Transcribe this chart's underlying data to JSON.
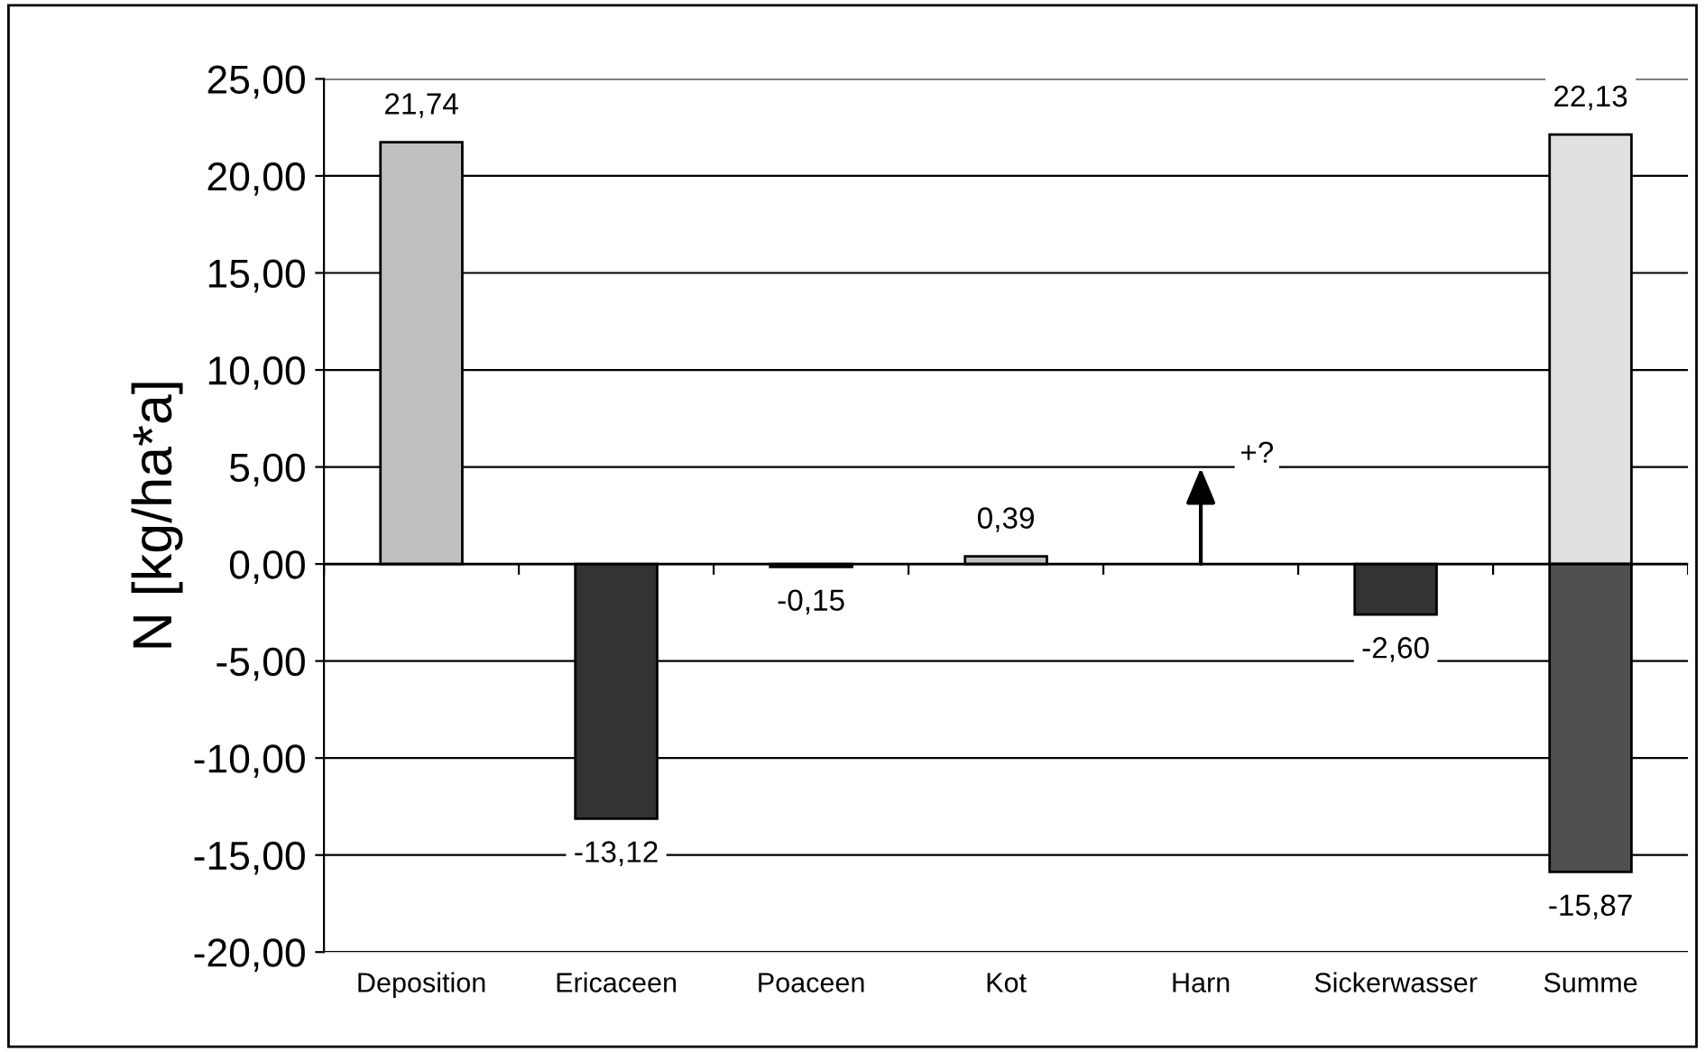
{
  "chart_data": {
    "type": "bar",
    "ylabel": "N [kg/ha*a]",
    "categories": [
      "Deposition",
      "Ericaceen",
      "Poaceen",
      "Kot",
      "Harn",
      "Sickerwasser",
      "Summe"
    ],
    "series": [
      {
        "colors": [
          "#c0c0c0",
          "#333333",
          "#333333",
          "#c0c0c0",
          null,
          "#333333",
          "#e0e0e0"
        ],
        "values": [
          21.74,
          -13.12,
          -0.15,
          0.39,
          null,
          -2.6,
          22.13
        ],
        "value_labels": [
          "21,74",
          "-13,12",
          "-0,15",
          "0,39",
          null,
          "-2,60",
          "22,13"
        ]
      },
      {
        "colors": [
          null,
          null,
          null,
          null,
          null,
          null,
          "#505050"
        ],
        "values": [
          null,
          null,
          null,
          null,
          null,
          null,
          -15.87
        ],
        "value_labels": [
          null,
          null,
          null,
          null,
          null,
          null,
          "-15,87"
        ]
      }
    ],
    "annotations": [
      "+?"
    ],
    "ylim": [
      -20,
      25
    ],
    "yticks": [
      {
        "value": 25,
        "label": "25,00"
      },
      {
        "value": 20,
        "label": "20,00"
      },
      {
        "value": 15,
        "label": "15,00"
      },
      {
        "value": 10,
        "label": "10,00"
      },
      {
        "value": 5,
        "label": "5,00"
      },
      {
        "value": 0,
        "label": "0,00"
      },
      {
        "value": -5,
        "label": "-5,00"
      },
      {
        "value": -10,
        "label": "-10,00"
      },
      {
        "value": -15,
        "label": "-15,00"
      },
      {
        "value": -20,
        "label": "-20,00"
      }
    ],
    "grid": "y"
  }
}
